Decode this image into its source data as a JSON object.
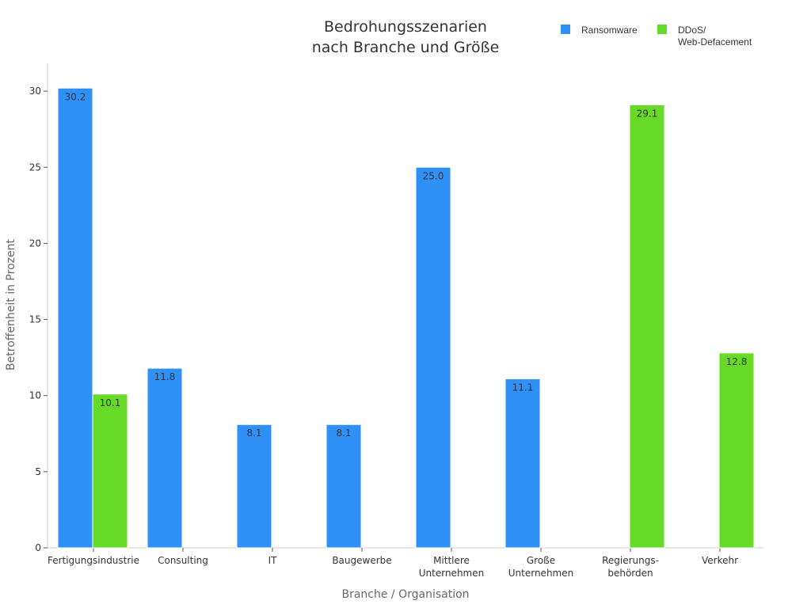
{
  "chart_data": {
    "type": "bar",
    "title_lines": [
      "Bedrohungsszenarien",
      "nach Branche und Größe"
    ],
    "xlabel": "Branche / Organisation",
    "ylabel": "Betroffenheit in Prozent",
    "ylim": [
      0,
      32
    ],
    "yticks": [
      0,
      5,
      10,
      15,
      20,
      25,
      30
    ],
    "categories": [
      [
        "Fertigungsindustrie"
      ],
      [
        "Consulting"
      ],
      [
        "IT"
      ],
      [
        "Baugewerbe"
      ],
      [
        "Mittlere",
        "Unternehmen"
      ],
      [
        "Große",
        "Unternehmen"
      ],
      [
        "Regierungs-",
        "behörden"
      ],
      [
        "Verkehr"
      ]
    ],
    "series": [
      {
        "name": "Ransomware",
        "legend_lines": [
          "Ransomware"
        ],
        "color": "#2f91f7",
        "values": [
          30.2,
          11.8,
          8.1,
          8.1,
          25.0,
          11.1,
          null,
          null
        ]
      },
      {
        "name": "DDoS/ Web-Defacement",
        "legend_lines": [
          "DDoS/",
          "Web-Defacement"
        ],
        "color": "#66da26",
        "values": [
          10.1,
          null,
          null,
          null,
          null,
          null,
          29.1,
          12.8
        ]
      }
    ],
    "legend_position": "top-right",
    "grid": false
  }
}
